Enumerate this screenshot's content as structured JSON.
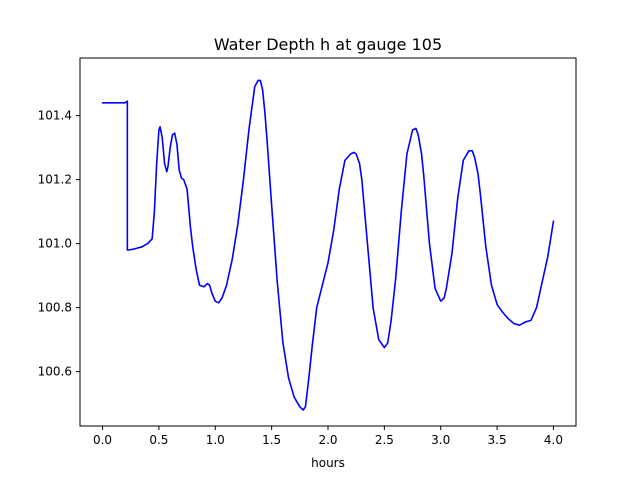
{
  "chart_data": {
    "type": "line",
    "title": "Water Depth h at gauge 105",
    "xlabel": "hours",
    "ylabel": "",
    "xlim": [
      -0.2,
      4.2
    ],
    "ylim": [
      100.43,
      101.58
    ],
    "xticks": [
      0.0,
      0.5,
      1.0,
      1.5,
      2.0,
      2.5,
      3.0,
      3.5,
      4.0
    ],
    "xtick_labels": [
      "0.0",
      "0.5",
      "1.0",
      "1.5",
      "2.0",
      "2.5",
      "3.0",
      "3.5",
      "4.0"
    ],
    "yticks": [
      100.6,
      100.8,
      101.0,
      101.2,
      101.4
    ],
    "ytick_labels": [
      "100.6",
      "100.8",
      "101.0",
      "101.2",
      "101.4"
    ],
    "grid": false,
    "legend": "none",
    "series": [
      {
        "color": "#0000ff",
        "x": [
          0.0,
          0.1,
          0.2,
          0.22,
          0.22,
          0.23,
          0.28,
          0.35,
          0.4,
          0.44,
          0.46,
          0.48,
          0.5,
          0.51,
          0.53,
          0.55,
          0.57,
          0.58,
          0.6,
          0.62,
          0.64,
          0.66,
          0.68,
          0.7,
          0.72,
          0.75,
          0.78,
          0.8,
          0.83,
          0.86,
          0.9,
          0.93,
          0.95,
          0.97,
          1.0,
          1.03,
          1.06,
          1.08,
          1.1,
          1.15,
          1.2,
          1.25,
          1.3,
          1.35,
          1.38,
          1.4,
          1.42,
          1.44,
          1.46,
          1.5,
          1.55,
          1.6,
          1.65,
          1.7,
          1.75,
          1.78,
          1.8,
          1.83,
          1.86,
          1.9,
          1.95,
          2.0,
          2.05,
          2.1,
          2.15,
          2.2,
          2.23,
          2.25,
          2.28,
          2.3,
          2.35,
          2.4,
          2.45,
          2.5,
          2.53,
          2.56,
          2.6,
          2.65,
          2.7,
          2.75,
          2.78,
          2.8,
          2.83,
          2.85,
          2.9,
          2.95,
          3.0,
          3.03,
          3.05,
          3.1,
          3.15,
          3.2,
          3.25,
          3.28,
          3.3,
          3.33,
          3.35,
          3.4,
          3.45,
          3.5,
          3.55,
          3.6,
          3.65,
          3.7,
          3.75,
          3.8,
          3.85,
          3.9,
          3.95,
          4.0
        ],
        "y": [
          101.44,
          101.44,
          101.44,
          101.445,
          100.98,
          100.98,
          100.983,
          100.99,
          101.0,
          101.015,
          101.1,
          101.25,
          101.355,
          101.365,
          101.33,
          101.25,
          101.225,
          101.24,
          101.3,
          101.34,
          101.345,
          101.31,
          101.23,
          101.205,
          101.2,
          101.17,
          101.05,
          100.99,
          100.92,
          100.87,
          100.865,
          100.875,
          100.87,
          100.845,
          100.82,
          100.815,
          100.83,
          100.85,
          100.87,
          100.95,
          101.06,
          101.2,
          101.36,
          101.49,
          101.51,
          101.51,
          101.48,
          101.41,
          101.32,
          101.12,
          100.88,
          100.69,
          100.58,
          100.52,
          100.49,
          100.48,
          100.49,
          100.58,
          100.68,
          100.8,
          100.87,
          100.94,
          101.04,
          101.17,
          101.26,
          101.28,
          101.285,
          101.28,
          101.25,
          101.2,
          101.0,
          100.8,
          100.7,
          100.675,
          100.69,
          100.76,
          100.89,
          101.1,
          101.28,
          101.355,
          101.36,
          101.34,
          101.28,
          101.21,
          101.0,
          100.86,
          100.82,
          100.83,
          100.86,
          100.97,
          101.14,
          101.26,
          101.29,
          101.29,
          101.27,
          101.22,
          101.16,
          100.99,
          100.87,
          100.81,
          100.785,
          100.765,
          100.75,
          100.745,
          100.755,
          100.76,
          100.8,
          100.88,
          100.96,
          101.07
        ]
      }
    ]
  }
}
